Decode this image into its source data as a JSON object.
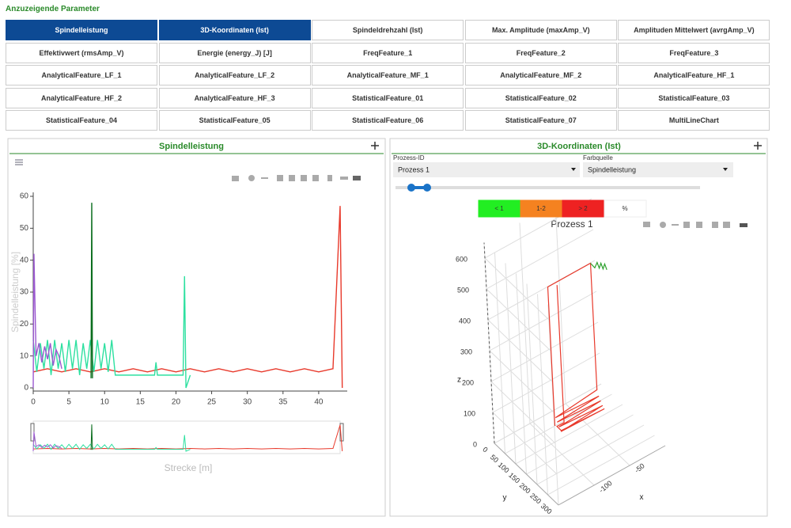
{
  "header": {
    "title": "Anzuzeigende Parameter"
  },
  "parameters": [
    {
      "label": "Spindelleistung",
      "active": true
    },
    {
      "label": "3D-Koordinaten (Ist)",
      "active": true
    },
    {
      "label": "Spindeldrehzahl (Ist)",
      "active": false
    },
    {
      "label": "Max. Amplitude (maxAmp_V)",
      "active": false
    },
    {
      "label": "Amplituden Mittelwert (avrgAmp_V)",
      "active": false
    },
    {
      "label": "Effektivwert (rmsAmp_V)",
      "active": false
    },
    {
      "label": "Energie (energy_J) [J]",
      "active": false
    },
    {
      "label": "FreqFeature_1",
      "active": false
    },
    {
      "label": "FreqFeature_2",
      "active": false
    },
    {
      "label": "FreqFeature_3",
      "active": false
    },
    {
      "label": "AnalyticalFeature_LF_1",
      "active": false
    },
    {
      "label": "AnalyticalFeature_LF_2",
      "active": false
    },
    {
      "label": "AnalyticalFeature_MF_1",
      "active": false
    },
    {
      "label": "AnalyticalFeature_MF_2",
      "active": false
    },
    {
      "label": "AnalyticalFeature_HF_1",
      "active": false
    },
    {
      "label": "AnalyticalFeature_HF_2",
      "active": false
    },
    {
      "label": "AnalyticalFeature_HF_3",
      "active": false
    },
    {
      "label": "StatisticalFeature_01",
      "active": false
    },
    {
      "label": "StatisticalFeature_02",
      "active": false
    },
    {
      "label": "StatisticalFeature_03",
      "active": false
    },
    {
      "label": "StatisticalFeature_04",
      "active": false
    },
    {
      "label": "StatisticalFeature_05",
      "active": false
    },
    {
      "label": "StatisticalFeature_06",
      "active": false
    },
    {
      "label": "StatisticalFeature_07",
      "active": false
    },
    {
      "label": "MultiLineChart",
      "active": false
    }
  ],
  "left_panel": {
    "title": "Spindelleistung",
    "chart": {
      "type": "line",
      "y_label": "Spindelleistung [%]",
      "x_label": "Strecke [m]",
      "xlim": [
        0,
        44
      ],
      "ylim": [
        0,
        60
      ],
      "xticks": [
        0,
        5,
        10,
        15,
        20,
        25,
        30,
        35,
        40
      ],
      "yticks": [
        0,
        10,
        20,
        30,
        40,
        50,
        60
      ],
      "range_slider": true,
      "series": [
        {
          "color": "#e8392b",
          "x": [
            0,
            2,
            4,
            6,
            8,
            10,
            12,
            14,
            16,
            18,
            20,
            22,
            24,
            26,
            28,
            30,
            32,
            34,
            36,
            38,
            40,
            42,
            43,
            43.3
          ],
          "values": [
            5,
            6,
            5,
            6,
            5,
            6,
            5,
            6,
            5,
            6,
            5,
            6,
            5,
            6,
            5,
            6,
            5,
            6,
            5,
            6,
            5,
            6,
            57,
            0
          ]
        },
        {
          "color": "#2de0a0",
          "x": [
            0,
            0.5,
            1,
            1.5,
            2,
            2.5,
            3,
            3.5,
            4,
            4.5,
            5,
            5.5,
            6,
            6.5,
            7,
            7.5,
            8,
            8.5,
            9,
            9.5,
            10,
            10.5,
            11,
            11.5,
            14,
            17,
            17.2,
            17.4,
            21,
            21.2,
            21.4,
            22
          ],
          "values": [
            15,
            5,
            14,
            6,
            15,
            4,
            15,
            6,
            14,
            5,
            15,
            6,
            15,
            4,
            14,
            6,
            15,
            5,
            15,
            6,
            14,
            5,
            15,
            4,
            4,
            4,
            8,
            4,
            4,
            35,
            0,
            4
          ]
        },
        {
          "color": "#0b6e1e",
          "x": [
            8.1,
            8.2,
            8.3
          ],
          "values": [
            3,
            58,
            3
          ]
        },
        {
          "color": "#9b59d0",
          "x": [
            0,
            0.1,
            0.4,
            0.8,
            1.2,
            1.6,
            2,
            2.4,
            2.8,
            3.2,
            3.6,
            4
          ],
          "values": [
            0,
            42,
            10,
            14,
            8,
            13,
            9,
            14,
            7,
            12,
            10,
            6
          ]
        }
      ]
    }
  },
  "right_panel": {
    "title": "3D-Koordinaten (Ist)",
    "controls": [
      {
        "label": "Prozess-ID",
        "value": "Prozess 1"
      },
      {
        "label": "Farbquelle",
        "value": "Spindelleistung"
      }
    ],
    "color_legend": [
      {
        "label": "< 1",
        "color": "#22ee22"
      },
      {
        "label": "1-2",
        "color": "#f58220"
      },
      {
        "label": "> 2",
        "color": "#ee2222"
      },
      {
        "label": "%",
        "color": "#ffffff"
      }
    ],
    "chart": {
      "type": "scatter3d",
      "title": "Prozess 1",
      "x_label": "x",
      "y_label": "y",
      "z_label": "z",
      "xlim": [
        -150,
        0
      ],
      "ylim": [
        0,
        300
      ],
      "zlim": [
        0,
        650
      ],
      "xticks": [
        -100,
        -50
      ],
      "yticks": [
        0,
        50,
        100,
        150,
        200,
        250,
        300
      ],
      "zticks": [
        0,
        100,
        200,
        300,
        400,
        500,
        600
      ],
      "series": [
        {
          "color": "#e8392b",
          "x": [
            -80,
            -80,
            -20,
            -20,
            -80,
            -20,
            -80,
            -20,
            -80,
            -20,
            -80,
            -20,
            -80,
            -80,
            -70,
            -70
          ],
          "y": [
            50,
            50,
            50,
            50,
            55,
            58,
            62,
            66,
            70,
            74,
            78,
            82,
            80,
            60,
            60,
            60
          ],
          "z": [
            0,
            450,
            450,
            40,
            30,
            25,
            20,
            15,
            10,
            5,
            0,
            0,
            5,
            5,
            5,
            450
          ]
        },
        {
          "color": "#2ca02c",
          "x": [
            -20,
            -15,
            -12,
            -10,
            -8,
            -6,
            -4,
            -2
          ],
          "y": [
            50,
            52,
            54,
            56,
            58,
            60,
            62,
            64
          ],
          "z": [
            450,
            430,
            445,
            425,
            440,
            420,
            435,
            415
          ]
        }
      ]
    }
  }
}
